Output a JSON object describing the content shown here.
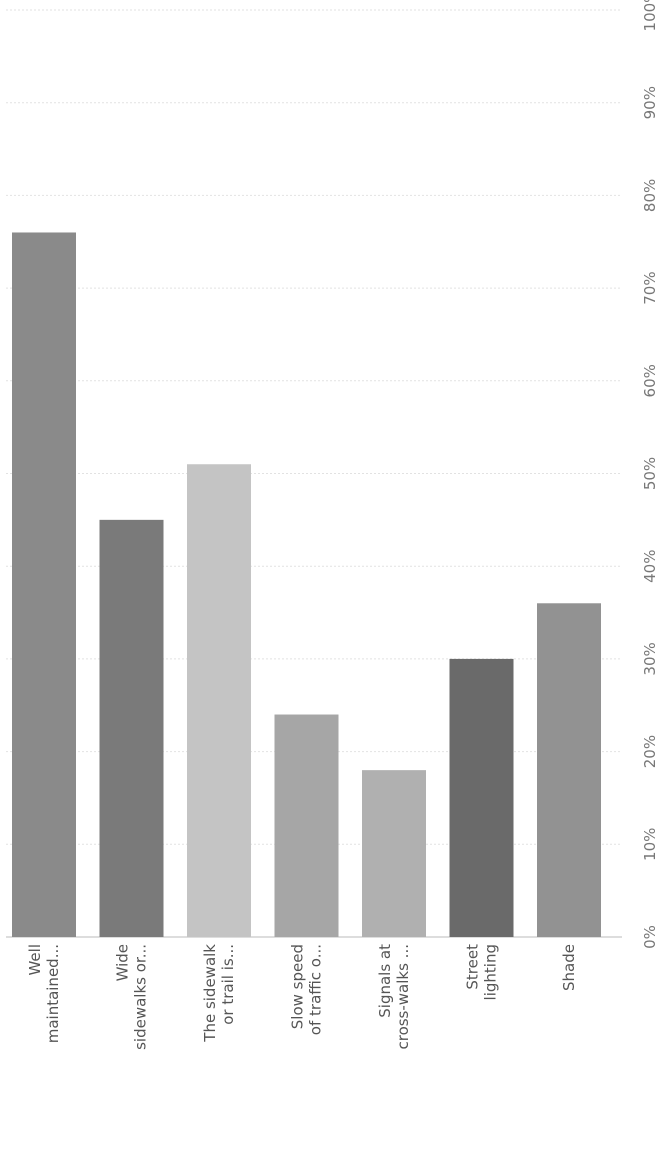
{
  "chart_data": {
    "type": "bar",
    "orientation": "horizontal",
    "categories": [
      [
        "Well",
        "maintained..."
      ],
      [
        "Wide",
        "sidewalks or..."
      ],
      [
        "The sidewalk",
        "or trail is..."
      ],
      [
        "Slow speed",
        "of traffic o..."
      ],
      [
        "Signals at",
        "cross-walks ..."
      ],
      [
        "Street",
        "lighting"
      ],
      [
        "Shade"
      ]
    ],
    "values": [
      76,
      45,
      51,
      24,
      18,
      30,
      36
    ],
    "value_unit": "%",
    "xlim": [
      0,
      100
    ],
    "ticks": [
      "0%",
      "10%",
      "20%",
      "30%",
      "40%",
      "50%",
      "60%",
      "70%",
      "80%",
      "90%",
      "100%"
    ],
    "colors": [
      "#8a8a8a",
      "#7a7a7a",
      "#c4c4c4",
      "#a6a6a6",
      "#b0b0b0",
      "#6a6a6a",
      "#929292"
    ],
    "grid": true,
    "legend": "none"
  }
}
